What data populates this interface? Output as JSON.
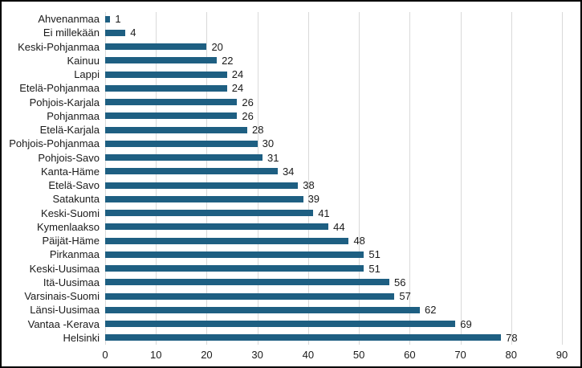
{
  "chart_data": {
    "type": "bar",
    "orientation": "horizontal",
    "title": "",
    "xlabel": "",
    "ylabel": "",
    "categories": [
      "Ahvenanmaa",
      "Ei millekään",
      "Keski-Pohjanmaa",
      "Kainuu",
      "Lappi",
      "Etelä-Pohjanmaa",
      "Pohjois-Karjala",
      "Pohjanmaa",
      "Etelä-Karjala",
      "Pohjois-Pohjanmaa",
      "Pohjois-Savo",
      "Kanta-Häme",
      "Etelä-Savo",
      "Satakunta",
      "Keski-Suomi",
      "Kymenlaakso",
      "Päijät-Häme",
      "Pirkanmaa",
      "Keski-Uusimaa",
      "Itä-Uusimaa",
      "Varsinais-Suomi",
      "Länsi-Uusimaa",
      "Vantaa -Kerava",
      "Helsinki"
    ],
    "values": [
      1,
      4,
      20,
      22,
      24,
      24,
      26,
      26,
      28,
      30,
      31,
      34,
      38,
      39,
      41,
      44,
      48,
      51,
      51,
      56,
      57,
      62,
      69,
      78
    ],
    "data_labels": [
      1,
      4,
      20,
      22,
      24,
      24,
      26,
      26,
      28,
      30,
      31,
      34,
      38,
      39,
      41,
      44,
      48,
      51,
      51,
      56,
      57,
      62,
      69,
      78
    ],
    "xlim": [
      0,
      90
    ],
    "x_tick_values": [
      0,
      10,
      20,
      30,
      40,
      50,
      60,
      70,
      80,
      90
    ],
    "grid": true,
    "legend": "none",
    "colors": {
      "bar": "#1E5F82",
      "gridline": "#d9d9d9",
      "text": "#1a1a1a",
      "background": "#ffffff",
      "frame_border": "#000000"
    }
  }
}
